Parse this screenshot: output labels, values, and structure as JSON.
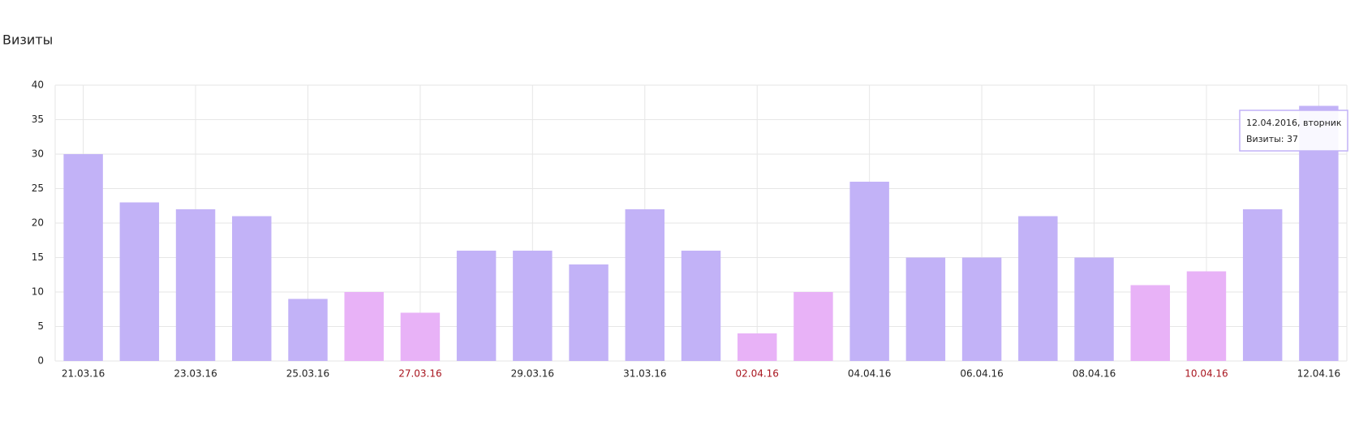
{
  "chart_data": {
    "type": "bar",
    "title": "Визиты",
    "categories": [
      "21.03.16",
      null,
      "23.03.16",
      null,
      "25.03.16",
      null,
      "27.03.16",
      null,
      "29.03.16",
      null,
      "31.03.16",
      null,
      "02.04.16",
      null,
      "04.04.16",
      null,
      "06.04.16",
      null,
      "08.04.16",
      null,
      "10.04.16",
      null,
      "12.04.16"
    ],
    "values": [
      30,
      23,
      22,
      21,
      9,
      10,
      7,
      16,
      16,
      14,
      22,
      16,
      4,
      10,
      26,
      15,
      15,
      21,
      15,
      11,
      13,
      22,
      37
    ],
    "weekend": [
      false,
      false,
      false,
      false,
      false,
      true,
      true,
      false,
      false,
      false,
      false,
      false,
      true,
      true,
      false,
      false,
      false,
      false,
      false,
      true,
      true,
      false,
      false
    ],
    "color": "#c2b2f7",
    "weekend_color": "#e8b2f7",
    "label_color": "#222222",
    "weekend_label_color": "#a8141e",
    "ylim": [
      0,
      40
    ],
    "yticks": [
      0,
      5,
      10,
      15,
      20,
      25,
      30,
      35,
      40
    ],
    "grid": true,
    "tooltip": {
      "title": "12.04.2016, вторник",
      "text": "Визиты: 37"
    }
  }
}
